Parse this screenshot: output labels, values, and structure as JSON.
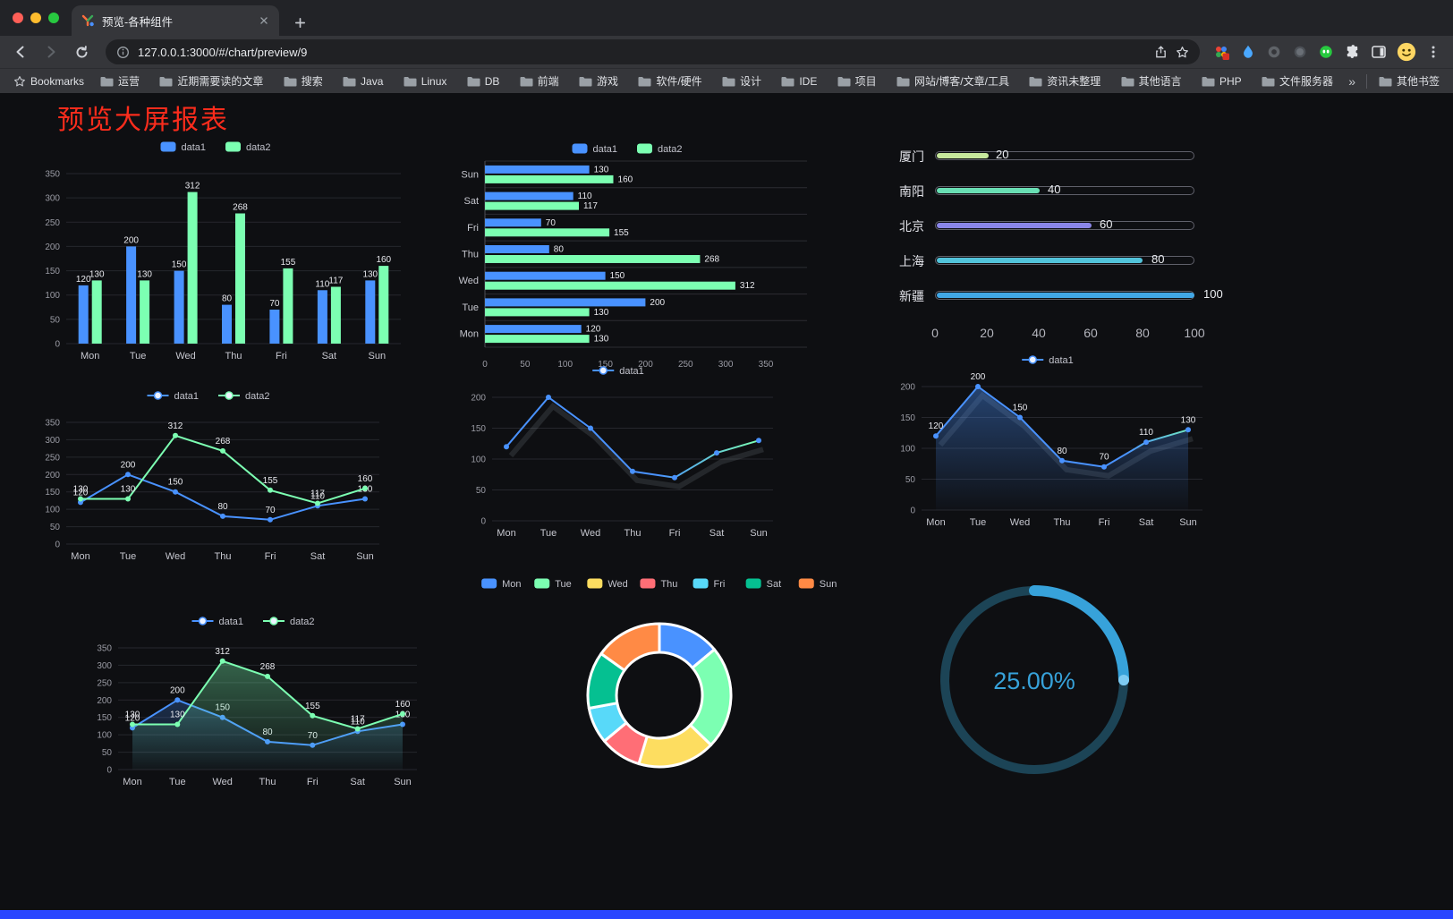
{
  "window": {
    "tab": {
      "title": "预览-各种组件"
    },
    "address": {
      "url": "127.0.0.1:3000/#/chart/preview/9"
    },
    "bookmarks": {
      "label": "Bookmarks",
      "items": [
        "运营",
        "近期需要读的文章",
        "搜索",
        "Java",
        "Linux",
        "DB",
        "前端",
        "游戏",
        "软件/硬件",
        "设计",
        "IDE",
        "项目",
        "网站/博客/文章/工具",
        "资讯未整理",
        "其他语言",
        "PHP",
        "文件服务器"
      ],
      "overflow_glyph": "»",
      "other_label": "其他书签"
    }
  },
  "page": {
    "title": "预览大屏报表",
    "title_color": "#fa2c1c",
    "accent_bar_color": "#2946ff"
  },
  "chart_data": [
    {
      "id": "grouped-bar",
      "type": "bar",
      "categories": [
        "Mon",
        "Tue",
        "Wed",
        "Thu",
        "Fri",
        "Sat",
        "Sun"
      ],
      "series": [
        {
          "name": "data1",
          "color": "#4992ff",
          "values": [
            120,
            200,
            150,
            80,
            70,
            110,
            130
          ]
        },
        {
          "name": "data2",
          "color": "#7cffb2",
          "values": [
            130,
            130,
            312,
            268,
            155,
            117,
            160
          ]
        }
      ],
      "ylim": [
        0,
        350
      ],
      "ytick": 50,
      "labels": true
    },
    {
      "id": "horizontal-bar",
      "type": "hbar",
      "categories": [
        "Mon",
        "Tue",
        "Wed",
        "Thu",
        "Fri",
        "Sat",
        "Sun"
      ],
      "series": [
        {
          "name": "data1",
          "color": "#4992ff",
          "values": [
            120,
            200,
            150,
            80,
            70,
            110,
            130
          ]
        },
        {
          "name": "data2",
          "color": "#7cffb2",
          "values": [
            130,
            130,
            312,
            268,
            155,
            117,
            160
          ]
        }
      ],
      "xlim": [
        0,
        350
      ],
      "xtick": 50,
      "labels": true
    },
    {
      "id": "city-progress",
      "type": "progress",
      "max": 100,
      "axis_ticks": [
        0,
        20,
        40,
        60,
        80,
        100
      ],
      "items": [
        {
          "label": "厦门",
          "value": 20,
          "color": "#c6e79c"
        },
        {
          "label": "南阳",
          "value": 40,
          "color": "#69dfb4"
        },
        {
          "label": "北京",
          "value": 60,
          "color": "#8a86e9"
        },
        {
          "label": "上海",
          "value": 80,
          "color": "#52c4db"
        },
        {
          "label": "新疆",
          "value": 100,
          "color": "#41a7e6"
        }
      ]
    },
    {
      "id": "line-dual",
      "type": "line",
      "categories": [
        "Mon",
        "Tue",
        "Wed",
        "Thu",
        "Fri",
        "Sat",
        "Sun"
      ],
      "series": [
        {
          "name": "data1",
          "color": "#4992ff",
          "values": [
            120,
            200,
            150,
            80,
            70,
            110,
            130
          ]
        },
        {
          "name": "data2",
          "color": "#7cffb2",
          "values": [
            130,
            130,
            312,
            268,
            155,
            117,
            160
          ]
        }
      ],
      "ylim": [
        0,
        350
      ],
      "ytick": 50,
      "labels": true
    },
    {
      "id": "line-gradient",
      "type": "line",
      "categories": [
        "Mon",
        "Tue",
        "Wed",
        "Thu",
        "Fri",
        "Sat",
        "Sun"
      ],
      "series": [
        {
          "name": "data1",
          "color": "#4992ff",
          "gradient": [
            [
              0,
              "#4992ff"
            ],
            [
              0.6,
              "#4992ff"
            ],
            [
              1,
              "#7cffb2"
            ]
          ],
          "values": [
            120,
            200,
            150,
            80,
            70,
            110,
            130
          ]
        }
      ],
      "ylim": [
        0,
        200
      ],
      "ytick": 50,
      "labels": false,
      "shadow": true
    },
    {
      "id": "area-single",
      "type": "line",
      "categories": [
        "Mon",
        "Tue",
        "Wed",
        "Thu",
        "Fri",
        "Sat",
        "Sun"
      ],
      "series": [
        {
          "name": "data1",
          "color": "#4992ff",
          "gradient": [
            [
              0,
              "#4992ff"
            ],
            [
              0.75,
              "#4992ff"
            ],
            [
              1,
              "#70e6c3"
            ]
          ],
          "area": true,
          "area_opacity": 0.4,
          "values": [
            120,
            200,
            150,
            80,
            70,
            110,
            130
          ]
        }
      ],
      "ylim": [
        0,
        200
      ],
      "ytick": 50,
      "labels": true,
      "shadow": true
    },
    {
      "id": "line-area-dual",
      "type": "line",
      "categories": [
        "Mon",
        "Tue",
        "Wed",
        "Thu",
        "Fri",
        "Sat",
        "Sun"
      ],
      "series": [
        {
          "name": "data1",
          "color": "#4992ff",
          "area": true,
          "area_opacity": 0.25,
          "values": [
            120,
            200,
            150,
            80,
            70,
            110,
            130
          ]
        },
        {
          "name": "data2",
          "color": "#7cffb2",
          "area": true,
          "area_opacity": 0.35,
          "values": [
            130,
            130,
            312,
            268,
            155,
            117,
            160
          ]
        }
      ],
      "ylim": [
        0,
        350
      ],
      "ytick": 50,
      "labels": true
    },
    {
      "id": "weekday-donut",
      "type": "pie",
      "categories": [
        "Mon",
        "Tue",
        "Wed",
        "Thu",
        "Fri",
        "Sat",
        "Sun"
      ],
      "values": [
        120,
        200,
        150,
        80,
        70,
        110,
        130
      ],
      "colors": [
        "#4992ff",
        "#7cffb2",
        "#fddd60",
        "#ff6e76",
        "#58d9f9",
        "#05c091",
        "#ff8a45"
      ]
    },
    {
      "id": "percent-gauge",
      "type": "gauge",
      "value": 25,
      "label": "25.00%",
      "color": "#37a2da",
      "track_color": "#1c4456",
      "cap_color": "#7ecbf2"
    }
  ]
}
